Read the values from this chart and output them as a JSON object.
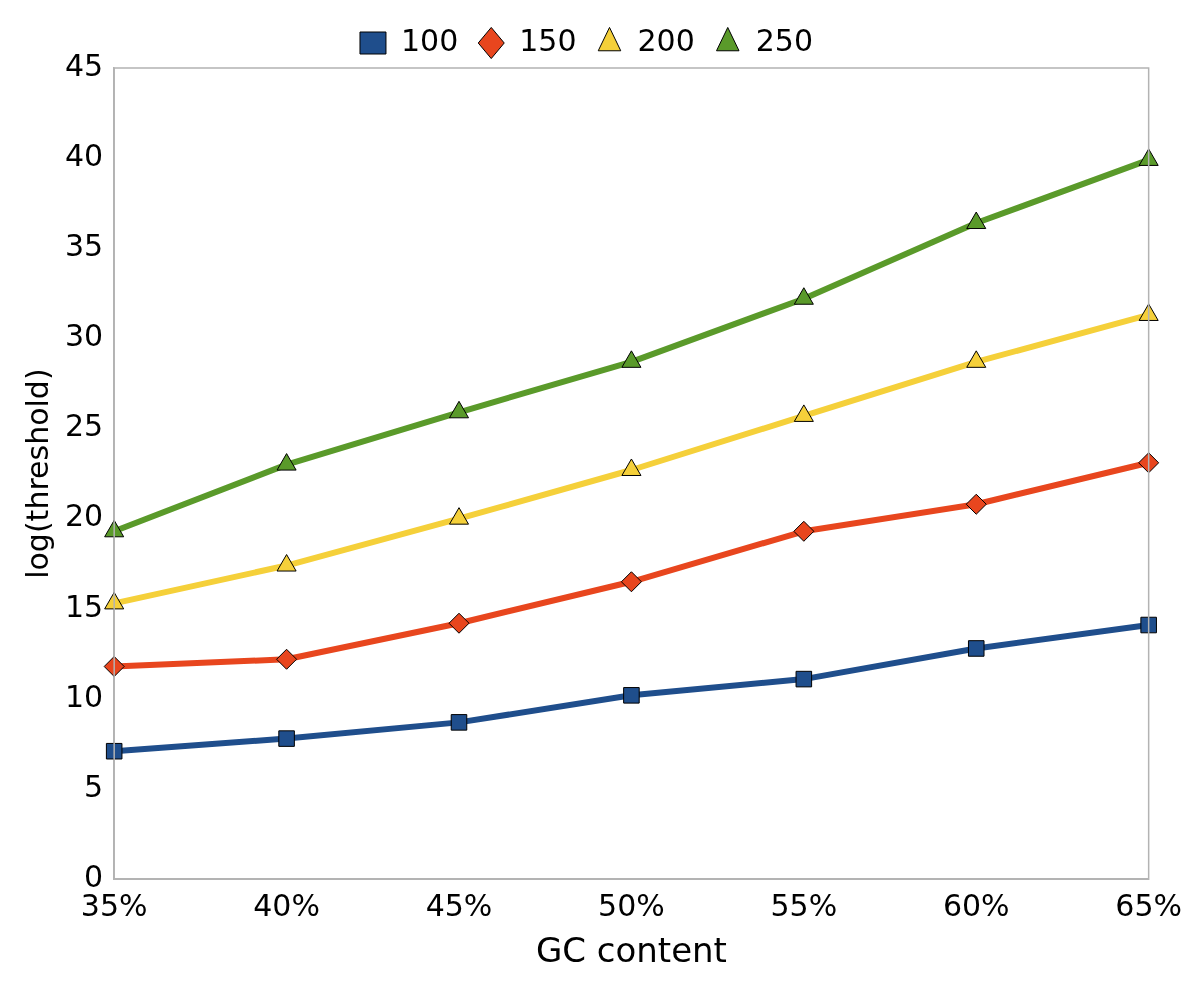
{
  "chart_data": {
    "type": "line",
    "xlabel": "GC content",
    "ylabel": "log(threshold)",
    "categories": [
      "35%",
      "40%",
      "45%",
      "50%",
      "55%",
      "60%",
      "65%"
    ],
    "series": [
      {
        "name": "100",
        "color": "#1f4e8c",
        "marker": "square",
        "values": [
          7.1,
          7.8,
          8.7,
          10.2,
          11.1,
          12.8,
          14.1
        ]
      },
      {
        "name": "150",
        "color": "#e8461e",
        "marker": "diamond",
        "values": [
          11.8,
          12.2,
          14.2,
          16.5,
          19.3,
          20.8,
          23.1
        ]
      },
      {
        "name": "200",
        "color": "#f5d03a",
        "marker": "triangle",
        "values": [
          15.3,
          17.4,
          20.0,
          22.7,
          25.7,
          28.7,
          31.3
        ]
      },
      {
        "name": "250",
        "color": "#5a9a2a",
        "marker": "triangle",
        "values": [
          19.3,
          23.0,
          25.9,
          28.7,
          32.2,
          36.4,
          39.9
        ]
      }
    ],
    "ylim": [
      0,
      45
    ],
    "yticks": [
      0,
      5,
      10,
      15,
      20,
      25,
      30,
      35,
      40,
      45
    ],
    "grid": false,
    "legend": "top",
    "line_style": "solid"
  }
}
